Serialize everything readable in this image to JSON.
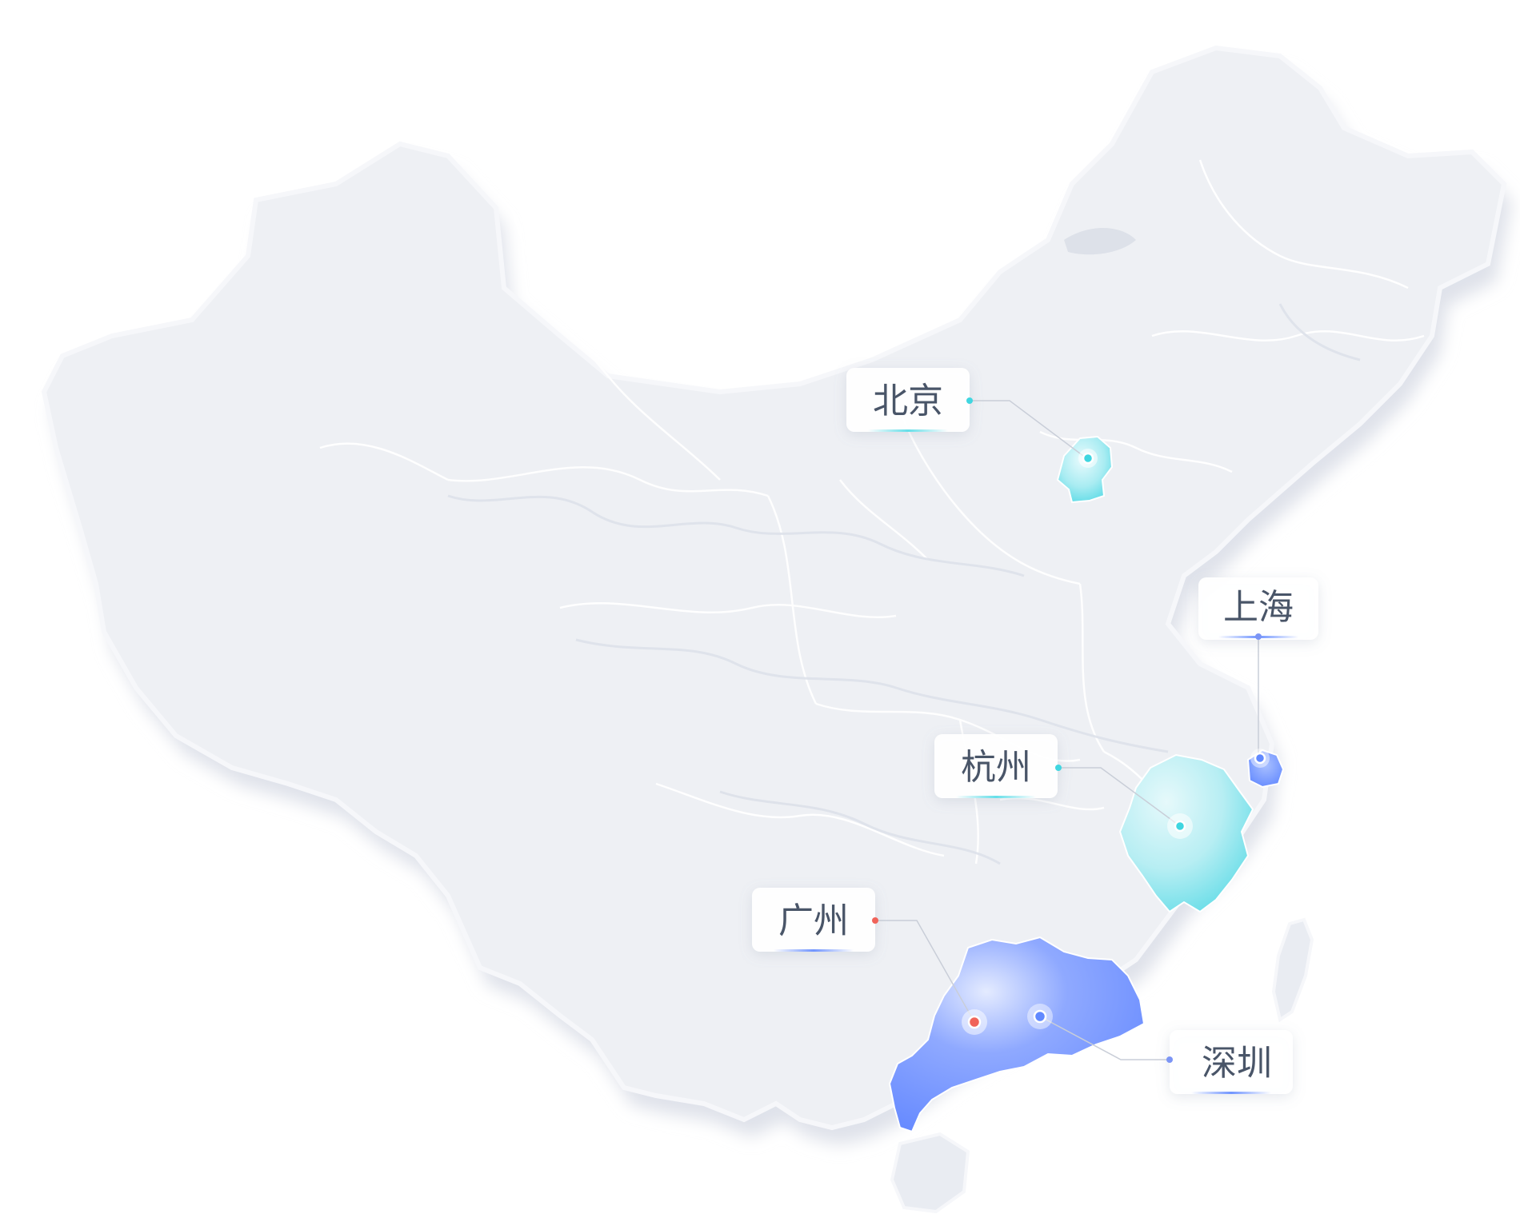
{
  "map": {
    "colors": {
      "land": "#eef0f4",
      "land_shadow": "#dfe2ea",
      "border": "#ffffff",
      "river": "#e3e6ee",
      "cyan": "#54dbe6",
      "cyan_light": "#c8f1f5",
      "blue": "#6189ff",
      "blue_light": "#a9c0ff",
      "label_bg": "#ffffff",
      "label_text": "#4a5468",
      "leader": "#c9ced8"
    },
    "markers": [
      {
        "id": "beijing",
        "label": "北京",
        "dot_color": "#3fd6e0"
      },
      {
        "id": "shanghai",
        "label": "上海",
        "dot_color": "#7b95f5"
      },
      {
        "id": "hangzhou",
        "label": "杭州",
        "dot_color": "#3fd6e0"
      },
      {
        "id": "guangzhou",
        "label": "广州",
        "dot_color": "#f0645a"
      },
      {
        "id": "shenzhen",
        "label": "深圳",
        "dot_color": "#7b95f5"
      }
    ]
  }
}
